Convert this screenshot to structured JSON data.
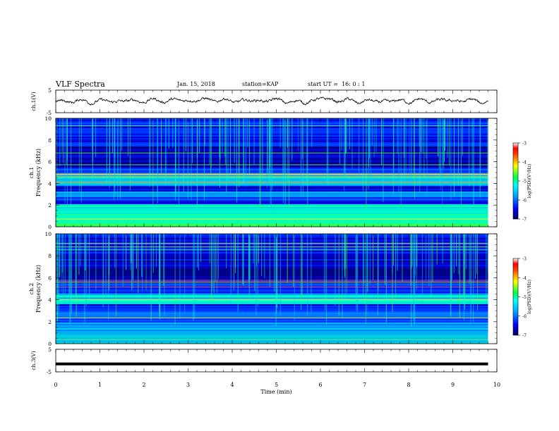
{
  "header": {
    "title": "VLF Spectra",
    "date": "Jan. 15, 2018",
    "station": "station=KAP",
    "start": "start UT =  16: 0 : 1"
  },
  "chart_data": [
    {
      "type": "line",
      "panel": "ch1-waveform",
      "ylabel": "ch.1(V)",
      "ylim": [
        -5,
        5
      ],
      "yticks": [
        "5",
        "-5"
      ],
      "xlim": [
        0,
        10
      ],
      "note_values": "noisy waveform oscillating roughly between -1.2 V and +1.6 V over 0-9.8 min",
      "envelope": {
        "x": [
          0,
          1,
          2,
          3,
          3.5,
          4,
          5,
          5.6,
          6,
          6.5,
          7,
          8,
          9,
          9.8
        ],
        "y": [
          0.2,
          0.0,
          0.3,
          0.5,
          0.8,
          0.2,
          0.5,
          -0.5,
          1.2,
          0.3,
          0.0,
          0.2,
          0.4,
          0.1
        ]
      }
    },
    {
      "type": "heatmap",
      "panel": "ch1-spectrogram",
      "ylabel": "ch.1 Frequency (kHz)",
      "ylim": [
        0,
        10
      ],
      "yticks": [
        "0",
        "2",
        "4",
        "6",
        "8",
        "10"
      ],
      "xlim": [
        0,
        9.8
      ],
      "bands_khz": [
        {
          "from": 0.0,
          "to": 0.5,
          "level": -4.6
        },
        {
          "from": 0.5,
          "to": 2.2,
          "level": -5.0
        },
        {
          "from": 2.2,
          "to": 2.8,
          "level": -6.2
        },
        {
          "from": 2.8,
          "to": 3.3,
          "level": -5.6
        },
        {
          "from": 3.3,
          "to": 3.8,
          "level": -6.4
        },
        {
          "from": 3.8,
          "to": 5.0,
          "level": -5.4
        },
        {
          "from": 5.0,
          "to": 5.5,
          "level": -6.2
        },
        {
          "from": 5.5,
          "to": 7.5,
          "level": -6.6
        },
        {
          "from": 7.5,
          "to": 10.0,
          "level": -6.3
        }
      ],
      "colorbar": {
        "label": "log(PSD)(V²/Hz)",
        "range": [
          -7,
          -3
        ],
        "ticks": [
          "-3",
          "-4",
          "-5",
          "-6",
          "-7"
        ]
      }
    },
    {
      "type": "heatmap",
      "panel": "ch2-spectrogram",
      "ylabel": "ch.2 Frequency (kHz)",
      "ylim": [
        0,
        10
      ],
      "yticks": [
        "0",
        "2",
        "4",
        "6",
        "8",
        "10"
      ],
      "xlim": [
        0,
        9.8
      ],
      "bands_khz": [
        {
          "from": 0.0,
          "to": 0.6,
          "level": -5.4
        },
        {
          "from": 0.6,
          "to": 2.0,
          "level": -5.6
        },
        {
          "from": 2.0,
          "to": 3.0,
          "level": -6.0
        },
        {
          "from": 3.0,
          "to": 3.6,
          "level": -6.4
        },
        {
          "from": 3.6,
          "to": 4.6,
          "level": -5.2
        },
        {
          "from": 4.6,
          "to": 5.6,
          "level": -6.1
        },
        {
          "from": 5.6,
          "to": 7.6,
          "level": -6.6
        },
        {
          "from": 7.6,
          "to": 10.0,
          "level": -6.4
        }
      ],
      "colorbar": {
        "label": "log(PSD)(V²/Hz)",
        "range": [
          -7,
          -3
        ],
        "ticks": [
          "-3",
          "-4",
          "-5",
          "-6",
          "-7"
        ]
      }
    },
    {
      "type": "line",
      "panel": "ch3-waveform",
      "ylabel": "ch.3(V)",
      "ylim": [
        -5,
        5
      ],
      "yticks": [
        "5",
        "-5"
      ],
      "xlim": [
        0,
        10
      ],
      "x": [
        0,
        9.8
      ],
      "y": [
        -1.5,
        -1.5
      ]
    }
  ],
  "xaxis": {
    "label": "Time (min)",
    "ticks": [
      "0",
      "1",
      "2",
      "3",
      "4",
      "5",
      "6",
      "7",
      "8",
      "9",
      "10"
    ]
  },
  "colors": {
    "waveform": "#000000",
    "background": "#ffffff"
  }
}
